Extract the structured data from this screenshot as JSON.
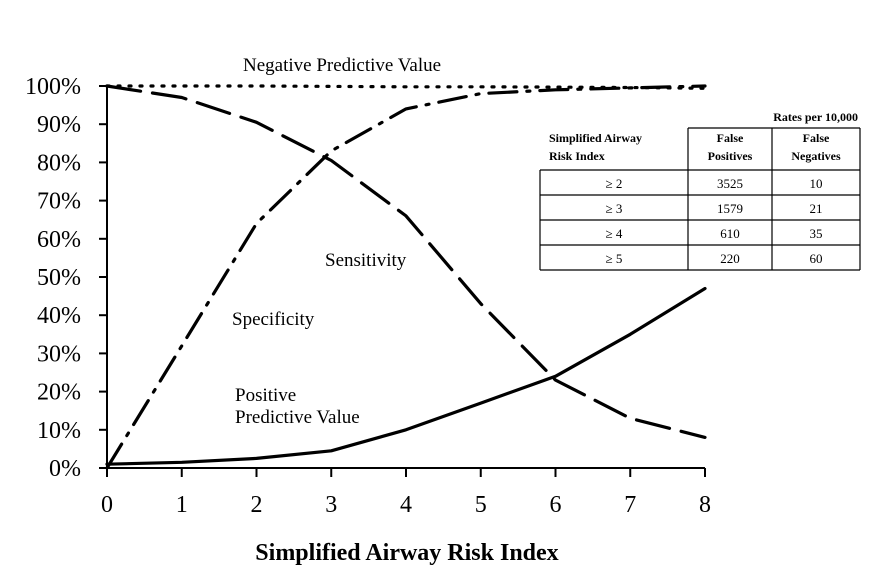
{
  "chart_data": {
    "type": "line",
    "title": "",
    "xlabel": "Simplified Airway Risk Index",
    "ylabel": "",
    "xlim": [
      0,
      8
    ],
    "ylim": [
      0,
      100
    ],
    "x_ticks": [
      "0",
      "1",
      "2",
      "3",
      "4",
      "5",
      "6",
      "7",
      "8"
    ],
    "y_ticks": [
      "0%",
      "10%",
      "20%",
      "30%",
      "40%",
      "50%",
      "60%",
      "70%",
      "80%",
      "90%",
      "100%"
    ],
    "grid": false,
    "series": [
      {
        "name": "Negative Predictive Value",
        "style": "dotted",
        "x": [
          0,
          1,
          2,
          3,
          4,
          5,
          6,
          7,
          8
        ],
        "y": [
          100,
          100,
          100,
          99.9,
          99.8,
          99.8,
          99.7,
          99.6,
          99.4
        ]
      },
      {
        "name": "Sensitivity",
        "style": "long-dash",
        "x": [
          0,
          1,
          2,
          3,
          4,
          5,
          6,
          7,
          8
        ],
        "y": [
          100,
          97,
          90.5,
          80.5,
          66,
          43,
          23,
          13,
          8
        ]
      },
      {
        "name": "Specificity",
        "style": "dash-dot",
        "x": [
          0,
          1,
          2,
          3,
          4,
          5,
          6,
          7,
          8
        ],
        "y": [
          0,
          32,
          64,
          83,
          94,
          98,
          99,
          99.5,
          100
        ]
      },
      {
        "name": "Positive Predictive Value",
        "style": "solid",
        "x": [
          0,
          1,
          2,
          3,
          4,
          5,
          6,
          7,
          8
        ],
        "y": [
          1,
          1.5,
          2.5,
          4.5,
          10,
          17,
          24,
          35,
          47
        ]
      }
    ],
    "table": {
      "caption": "Rates per 10,000",
      "columns": [
        "Simplified Airway Risk Index",
        "False Positives",
        "False Negatives"
      ],
      "rows": [
        [
          "≥ 2",
          "3525",
          "10"
        ],
        [
          "≥ 3",
          "1579",
          "21"
        ],
        [
          "≥ 4",
          "610",
          "35"
        ],
        [
          "≥ 5",
          "220",
          "60"
        ]
      ]
    }
  },
  "labels": {
    "npv": "Negative Predictive Value",
    "sensitivity": "Sensitivity",
    "specificity": "Specificity",
    "ppv_line1": "Positive",
    "ppv_line2": "Predictive Value"
  },
  "table_text": {
    "caption": "Rates per 10,000",
    "head_index_line1": "Simplified Airway",
    "head_index_line2": "Risk Index",
    "head_fp_line1": "False",
    "head_fp_line2": "Positives",
    "head_fn_line1": "False",
    "head_fn_line2": "Negatives"
  }
}
